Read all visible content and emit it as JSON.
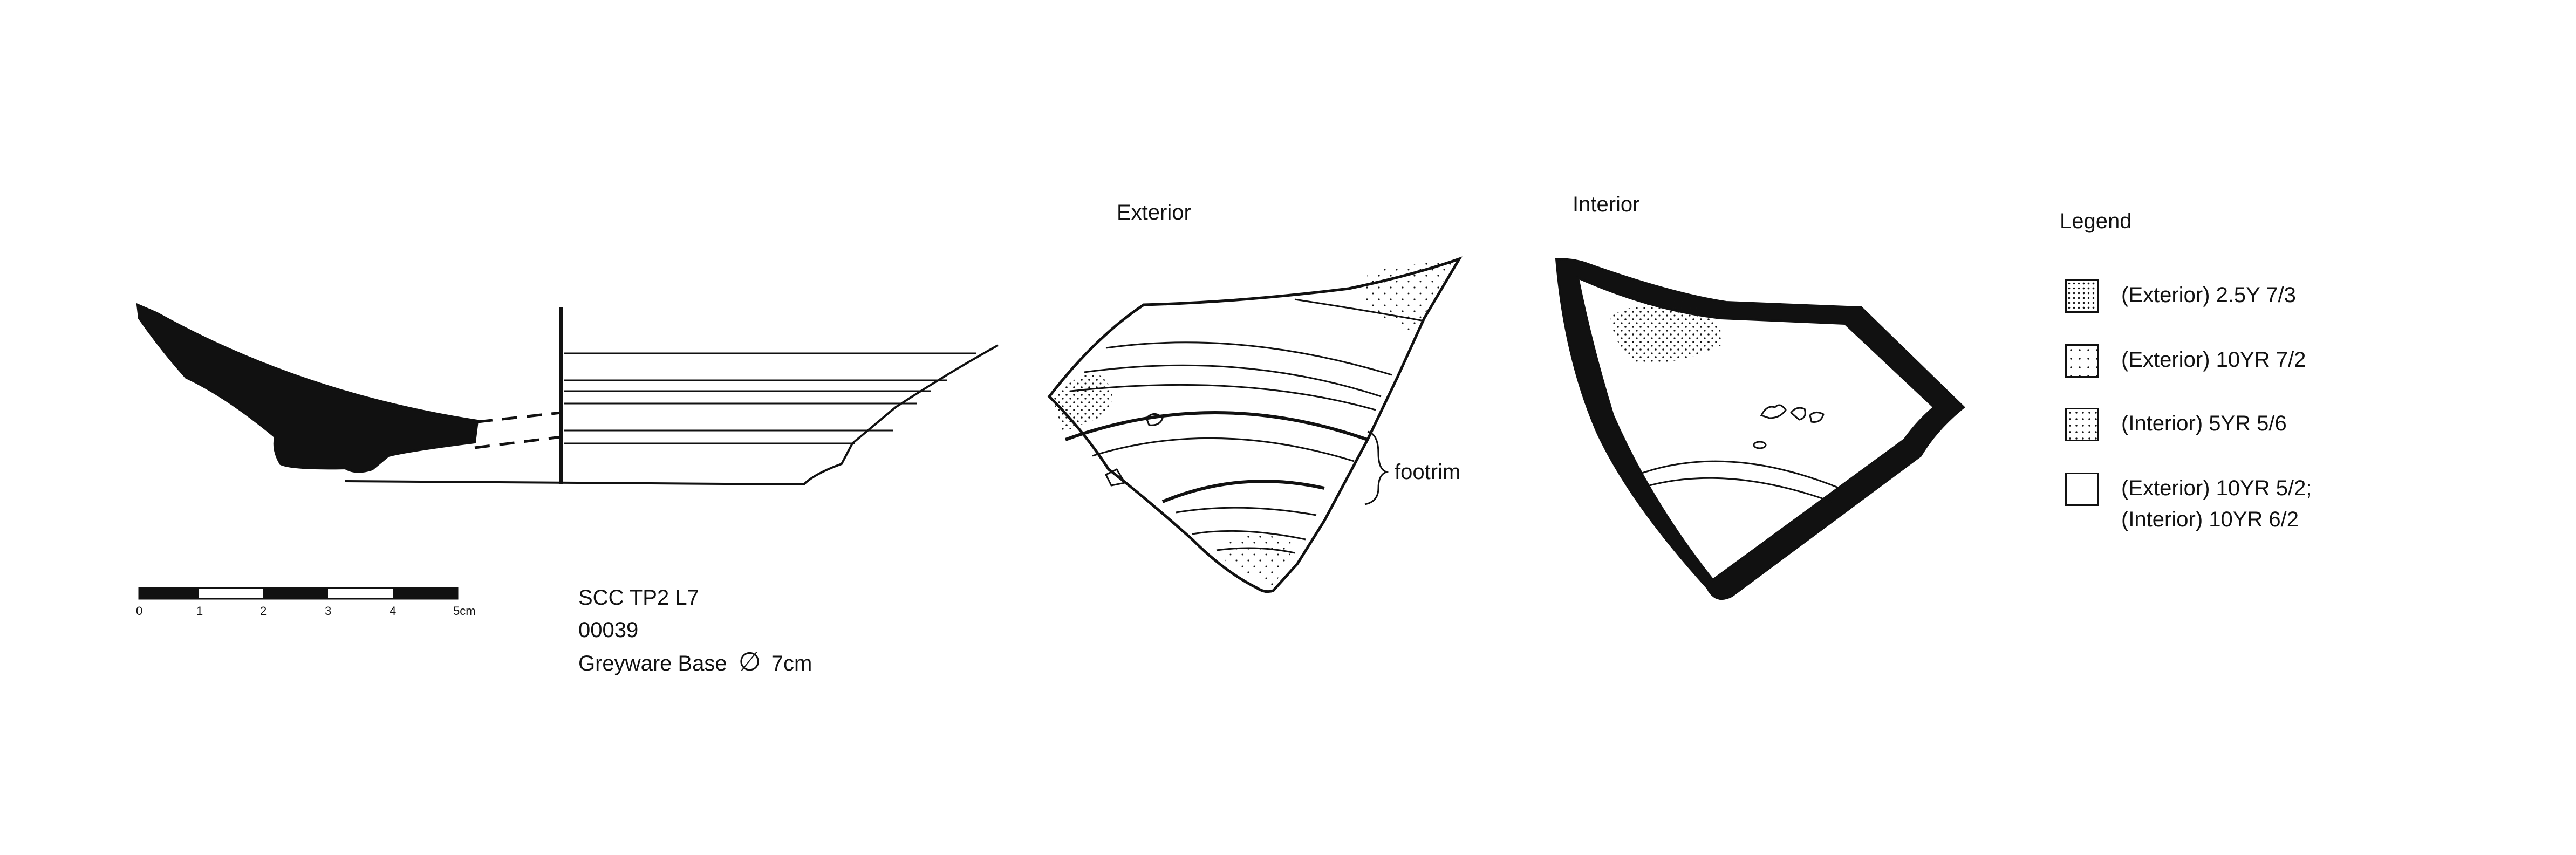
{
  "views": {
    "exterior": "Exterior",
    "interior": "Interior"
  },
  "annotations": {
    "footrim": "footrim"
  },
  "scale_bar": {
    "ticks": [
      "0",
      "1",
      "2",
      "3",
      "4",
      "5cm"
    ]
  },
  "sample": {
    "site_context": "SCC TP2 L7",
    "number": "00039",
    "description": "Greyware Base",
    "diameter_symbol": "∅",
    "diameter": "7cm"
  },
  "legend": {
    "title": "Legend",
    "items": [
      {
        "label": "(Exterior) 2.5Y 7/3",
        "pattern": "dots-dense"
      },
      {
        "label": "(Exterior) 10YR 7/2",
        "pattern": "dots-sparse"
      },
      {
        "label": "(Interior) 5YR 5/6",
        "pattern": "dots-medium"
      },
      {
        "label": "(Exterior) 10YR 5/2;",
        "label2": "(Interior) 10YR 6/2",
        "pattern": "plain"
      }
    ]
  }
}
